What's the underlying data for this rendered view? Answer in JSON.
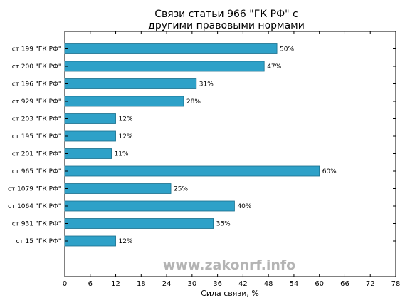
{
  "chart_data": {
    "type": "bar",
    "orientation": "horizontal",
    "title": [
      "Связи статьи 966 \"ГК РФ\" с",
      "другими правовыми нормами"
    ],
    "xlabel": "Сила связи, %",
    "ylabel": "",
    "xlim": [
      0,
      78
    ],
    "xticks": [
      0,
      6,
      12,
      18,
      24,
      30,
      36,
      42,
      48,
      54,
      60,
      66,
      72,
      78
    ],
    "categories": [
      "ст 199 \"ГК РФ\"",
      "ст 200 \"ГК РФ\"",
      "ст 196 \"ГК РФ\"",
      "ст 929 \"ГК РФ\"",
      "ст 203 \"ГК РФ\"",
      "ст 195 \"ГК РФ\"",
      "ст 201 \"ГК РФ\"",
      "ст 965 \"ГК РФ\"",
      "ст 1079 \"ГК РФ\"",
      "ст 1064 \"ГК РФ\"",
      "ст 931 \"ГК РФ\"",
      "ст 15 \"ГК РФ\""
    ],
    "values": [
      50,
      47,
      31,
      28,
      12,
      12,
      11,
      60,
      25,
      40,
      35,
      12
    ],
    "value_labels": [
      "50%",
      "47%",
      "31%",
      "28%",
      "12%",
      "12%",
      "11%",
      "60%",
      "25%",
      "40%",
      "35%",
      "12%"
    ],
    "bar_color": "#2ea1c8",
    "grid": false
  },
  "watermark": "www.zakonrf.info"
}
